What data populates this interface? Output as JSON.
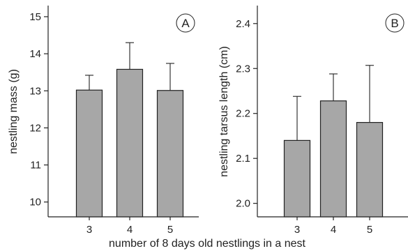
{
  "chart_data": {
    "type": "bar",
    "categories": [
      "3",
      "4",
      "5"
    ],
    "xlabel": "number of 8 days old nestlings in a nest",
    "panels": [
      {
        "label": "A",
        "ylabel": "nestling mass (g)",
        "ylim": [
          9.6,
          15.3
        ],
        "yticks": [
          10,
          11,
          12,
          13,
          14,
          15
        ],
        "ytick_labels": [
          "10",
          "11",
          "12",
          "13",
          "14",
          "15"
        ],
        "values": [
          13.02,
          13.58,
          13.01
        ],
        "error_upper": [
          0.4,
          0.72,
          0.73
        ],
        "bar_color": "#a7a7a7"
      },
      {
        "label": "B",
        "ylabel": "nestling tarsus length (cm)",
        "ylim": [
          1.97,
          2.44
        ],
        "yticks": [
          2.0,
          2.1,
          2.2,
          2.3,
          2.4
        ],
        "ytick_labels": [
          "2.0",
          "2.1",
          "2.2",
          "2.3",
          "2.4"
        ],
        "values": [
          2.14,
          2.228,
          2.18
        ],
        "error_upper": [
          0.098,
          0.06,
          0.127
        ],
        "bar_color": "#a7a7a7"
      }
    ]
  }
}
